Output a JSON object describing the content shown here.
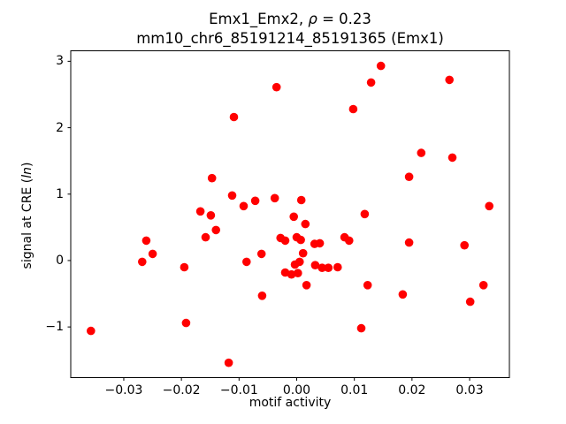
{
  "titles": {
    "line1_prefix": "Emx1_Emx2, ",
    "line1_rho": "ρ",
    "line1_suffix": " = 0.23",
    "line2": "mm10_chr6_85191214_85191365 (Emx1)"
  },
  "ylabel_parts": {
    "prefix": "signal at CRE (",
    "italic": "ln",
    "suffix": ")"
  },
  "chart_data": {
    "type": "scatter",
    "title": "Emx1_Emx2, ρ = 0.23",
    "subtitle": "mm10_chr6_85191214_85191365 (Emx1)",
    "xlabel": "motif activity",
    "ylabel": "signal at CRE (ln)",
    "xlim": [
      -0.0392,
      0.0369
    ],
    "ylim": [
      -1.763,
      3.158
    ],
    "xticks": [
      -0.03,
      -0.02,
      -0.01,
      0.0,
      0.01,
      0.02,
      0.03
    ],
    "xtick_labels": [
      "−0.03",
      "−0.02",
      "−0.01",
      "0.00",
      "0.01",
      "0.02",
      "0.03"
    ],
    "yticks": [
      -1,
      0,
      1,
      2,
      3
    ],
    "ytick_labels": [
      "−1",
      "0",
      "1",
      "2",
      "3"
    ],
    "grid": false,
    "legend": null,
    "marker_color": "#ff0000",
    "marker_radius_px": 4.8,
    "frame_color": "#000000",
    "points": [
      [
        -0.0035,
        2.61
      ],
      [
        -0.0109,
        2.16
      ],
      [
        -0.0147,
        1.24
      ],
      [
        -0.0112,
        0.98
      ],
      [
        -0.0092,
        0.82
      ],
      [
        -0.0072,
        0.9
      ],
      [
        -0.0038,
        0.94
      ],
      [
        -0.0167,
        0.74
      ],
      [
        -0.0149,
        0.68
      ],
      [
        -0.0005,
        0.66
      ],
      [
        0.0008,
        0.91
      ],
      [
        0.0146,
        2.93
      ],
      [
        0.0129,
        2.68
      ],
      [
        0.0265,
        2.72
      ],
      [
        0.0098,
        2.28
      ],
      [
        0.0216,
        1.62
      ],
      [
        0.027,
        1.55
      ],
      [
        0.0195,
        1.26
      ],
      [
        0.0334,
        0.82
      ],
      [
        0.0118,
        0.7
      ],
      [
        -0.014,
        0.46
      ],
      [
        -0.0158,
        0.35
      ],
      [
        -0.0261,
        0.3
      ],
      [
        -0.025,
        0.1
      ],
      [
        -0.0268,
        -0.02
      ],
      [
        -0.0195,
        -0.1
      ],
      [
        -0.0087,
        -0.02
      ],
      [
        -0.0061,
        0.1
      ],
      [
        -0.0028,
        0.34
      ],
      [
        -0.002,
        0.3
      ],
      [
        -0.006,
        -0.53
      ],
      [
        -0.0192,
        -0.94
      ],
      [
        -0.0357,
        -1.06
      ],
      [
        -0.0118,
        -1.54
      ],
      [
        0.0015,
        0.55
      ],
      [
        0.0,
        0.35
      ],
      [
        0.0007,
        0.31
      ],
      [
        0.0031,
        0.25
      ],
      [
        0.004,
        0.26
      ],
      [
        0.0083,
        0.35
      ],
      [
        0.0091,
        0.3
      ],
      [
        0.0011,
        0.11
      ],
      [
        -0.0003,
        -0.06
      ],
      [
        0.0005,
        -0.02
      ],
      [
        -0.002,
        -0.18
      ],
      [
        -0.0009,
        -0.21
      ],
      [
        0.0002,
        -0.19
      ],
      [
        0.0017,
        -0.37
      ],
      [
        0.0032,
        -0.07
      ],
      [
        0.0044,
        -0.11
      ],
      [
        0.0055,
        -0.11
      ],
      [
        0.0071,
        -0.1
      ],
      [
        0.0195,
        0.27
      ],
      [
        0.0291,
        0.23
      ],
      [
        0.0123,
        -0.37
      ],
      [
        0.0184,
        -0.51
      ],
      [
        0.0324,
        -0.37
      ],
      [
        0.0301,
        -0.62
      ],
      [
        0.0112,
        -1.02
      ]
    ]
  },
  "layout_note": ""
}
